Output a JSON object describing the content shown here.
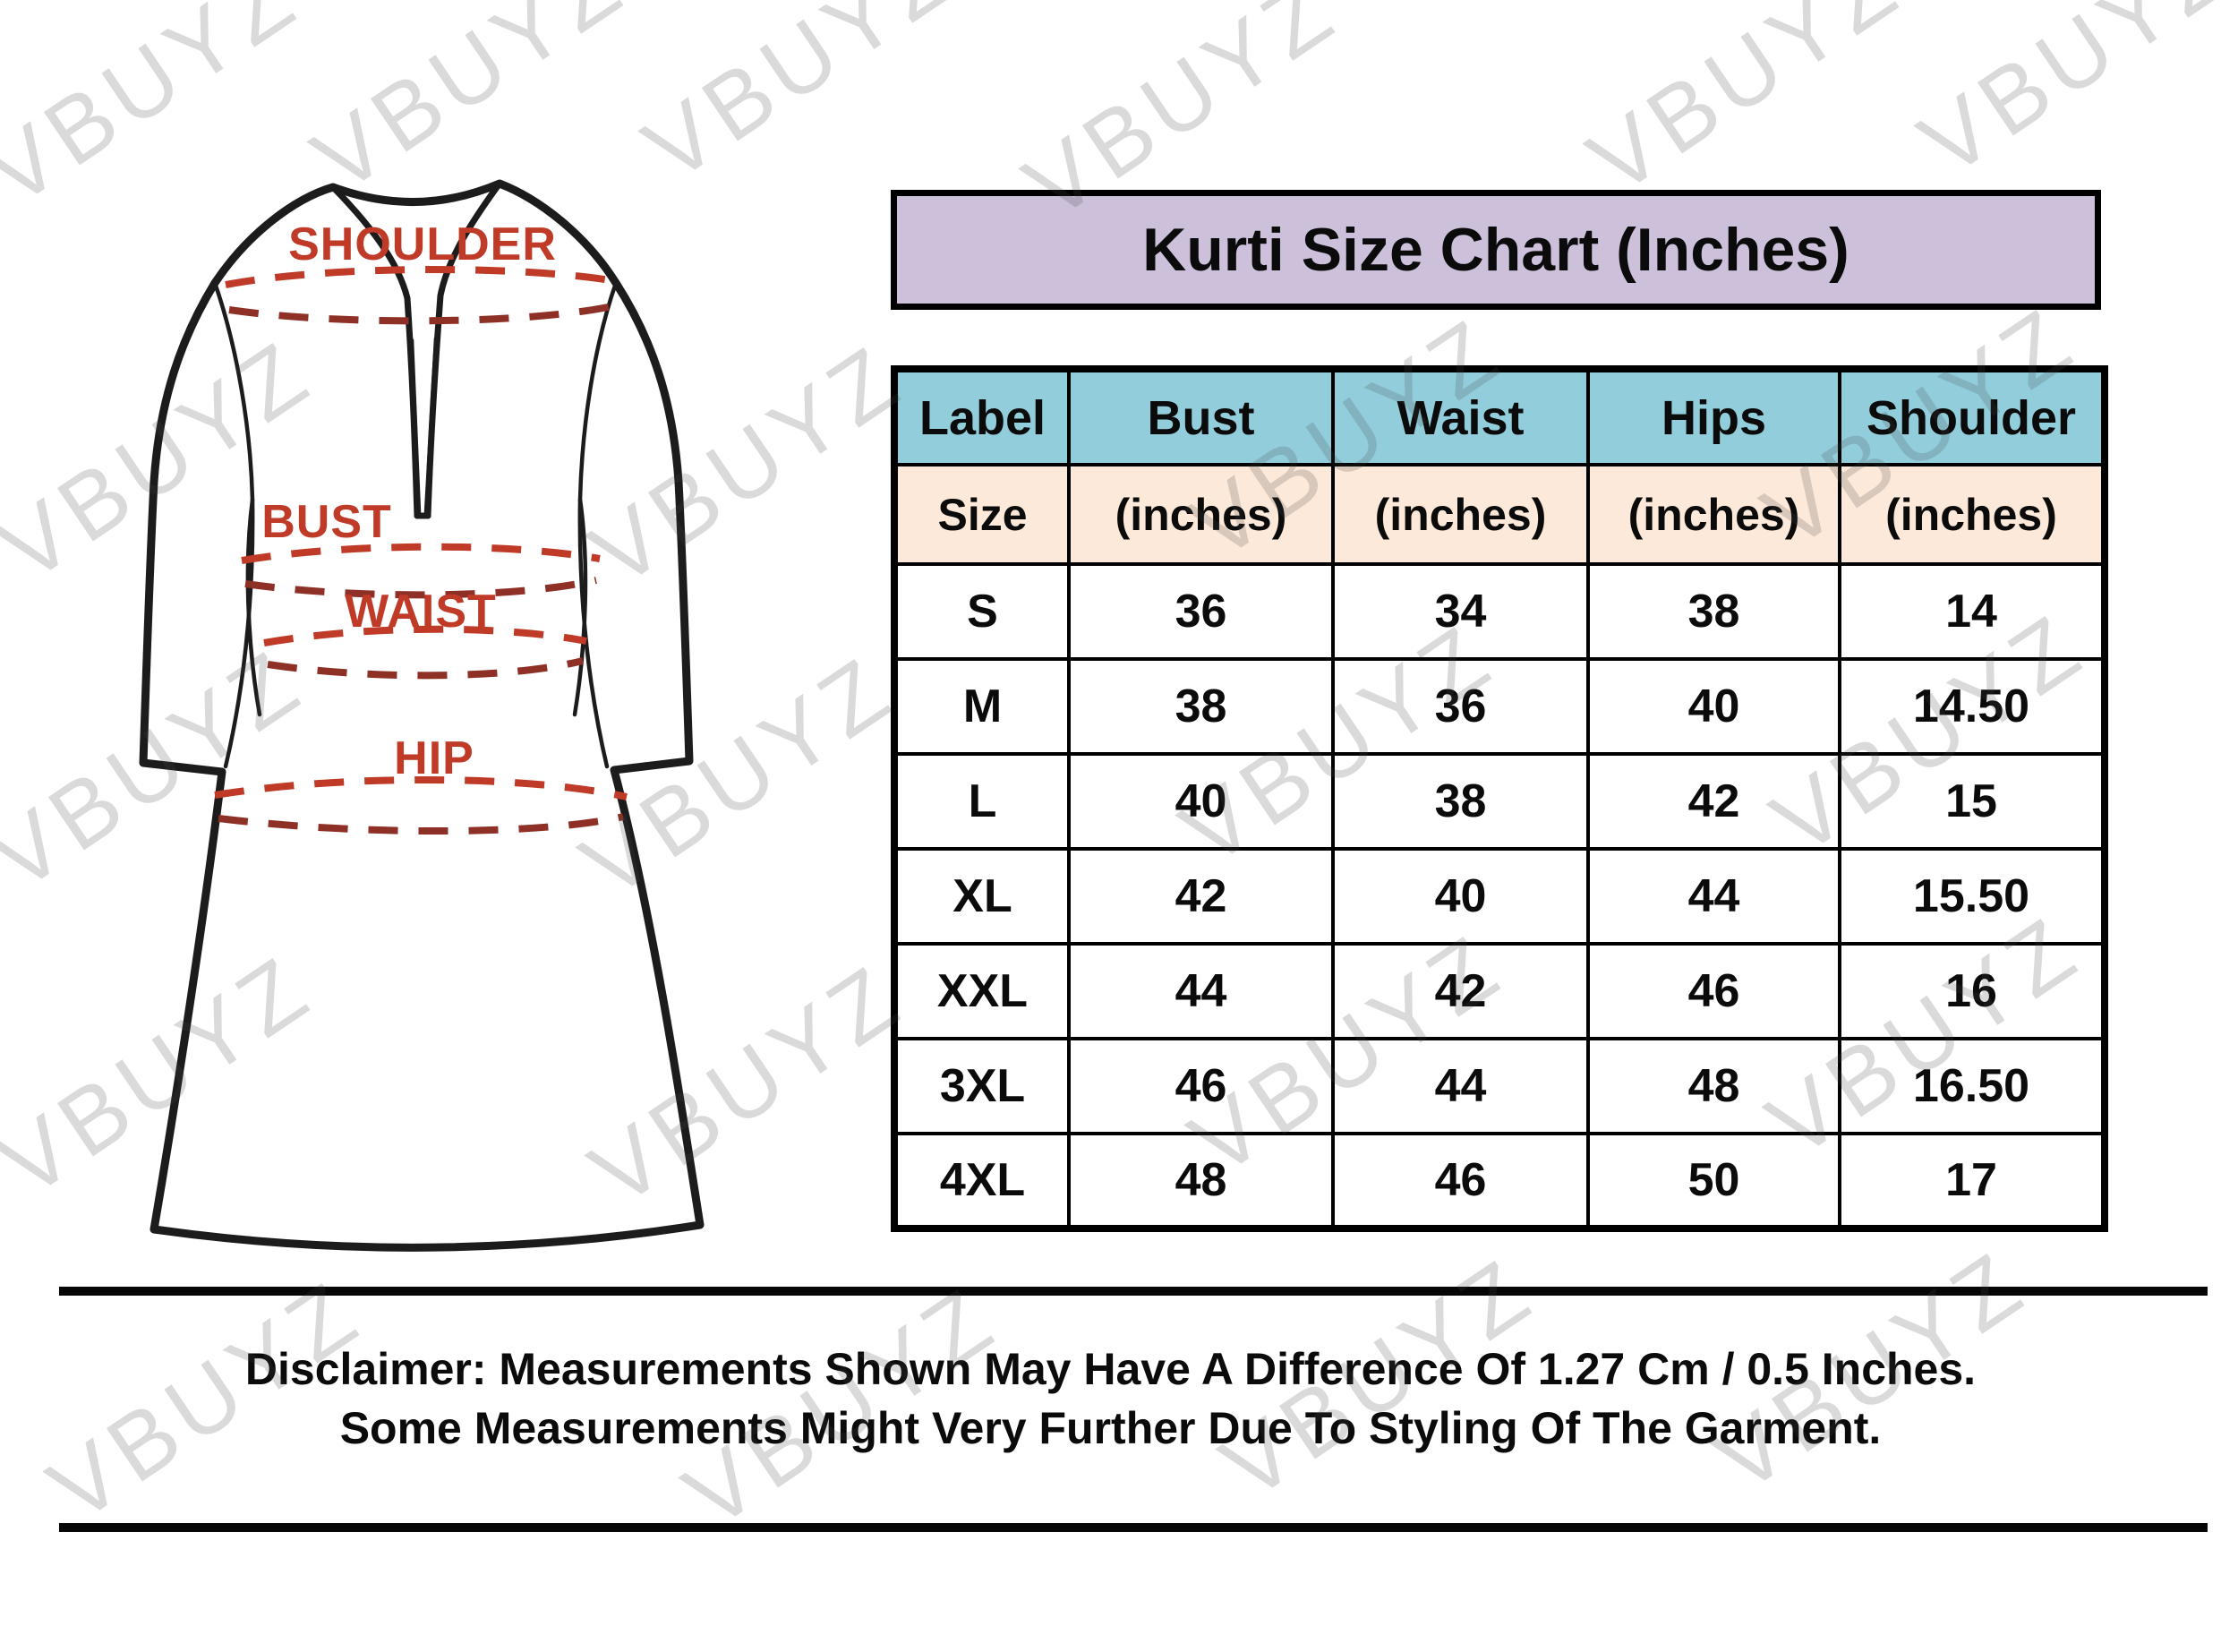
{
  "chart_data": {
    "type": "table",
    "title": "Kurti Size Chart (Inches)",
    "header": [
      "Label",
      "Bust",
      "Waist",
      "Hips",
      "Shoulder"
    ],
    "subheader": [
      "Size",
      "(inches)",
      "(inches)",
      "(inches)",
      "(inches)"
    ],
    "rows": [
      [
        "S",
        "36",
        "34",
        "38",
        "14"
      ],
      [
        "M",
        "38",
        "36",
        "40",
        "14.50"
      ],
      [
        "L",
        "40",
        "38",
        "42",
        "15"
      ],
      [
        "XL",
        "42",
        "40",
        "44",
        "15.50"
      ],
      [
        "XXL",
        "44",
        "42",
        "46",
        "16"
      ],
      [
        "3XL",
        "46",
        "44",
        "48",
        "16.50"
      ],
      [
        "4XL",
        "48",
        "46",
        "50",
        "17"
      ]
    ],
    "units": "inches",
    "layout_hints": {
      "grid": true,
      "header_rows": 2
    }
  },
  "diagram": {
    "labels": {
      "shoulder": "SHOULDER",
      "bust": "BUST",
      "waist": "WAIST",
      "hip": "HIP"
    }
  },
  "disclaimer": {
    "line1": "Disclaimer: Measurements Shown May Have A Difference Of 1.27 Cm / 0.5 Inches.",
    "line2": "Some Measurements Might Very Further Due To Styling Of The Garment."
  },
  "watermark": {
    "text": "VBUYZ"
  },
  "colors": {
    "title_bg": "#ccc0da",
    "table_header_bg": "#92cddc",
    "table_subheader_bg": "#fde9d9",
    "measurement_line": "#c03a28",
    "measurement_line_dark": "#8e3026",
    "border": "#000000",
    "watermark_gray": "#dcdcdc"
  }
}
